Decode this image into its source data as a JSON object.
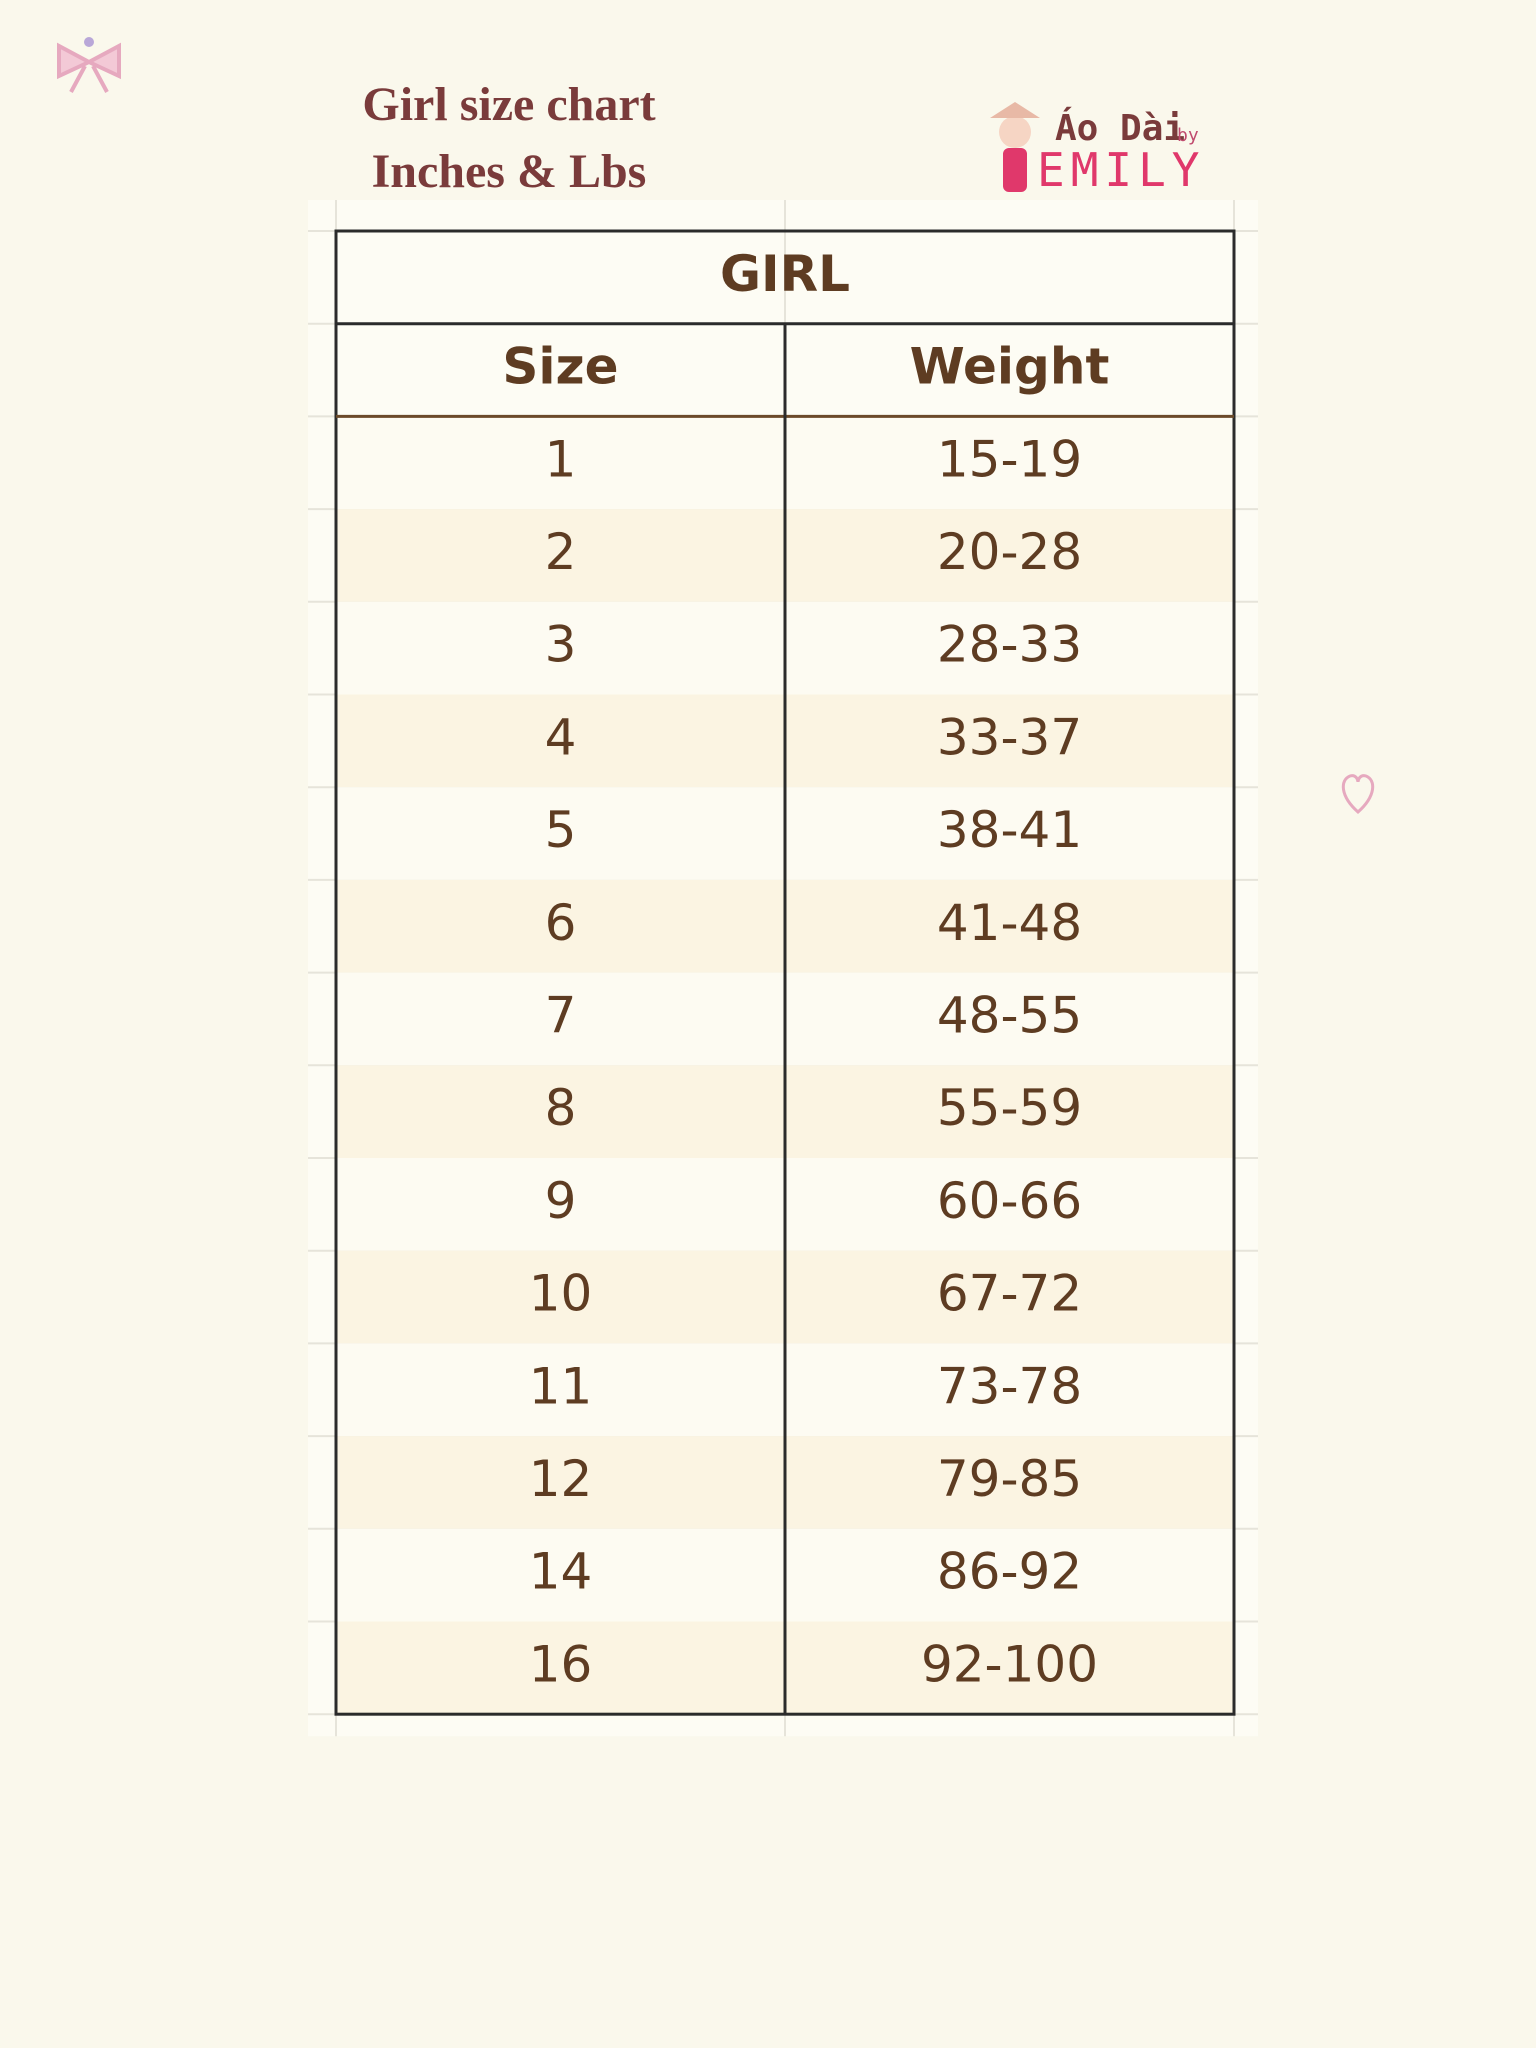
{
  "header": {
    "title": "Girl size chart",
    "subtitle": "Inches & Lbs"
  },
  "logo": {
    "brand": "Áo Dài",
    "by": "by",
    "name": "EMILY"
  },
  "table": {
    "caption": "GIRL",
    "columns": [
      "Size",
      "Weight"
    ],
    "rows": [
      [
        "1",
        "15-19"
      ],
      [
        "2",
        "20-28"
      ],
      [
        "3",
        "28-33"
      ],
      [
        "4",
        "33-37"
      ],
      [
        "5",
        "38-41"
      ],
      [
        "6",
        "41-48"
      ],
      [
        "7",
        "48-55"
      ],
      [
        "8",
        "55-59"
      ],
      [
        "9",
        "60-66"
      ],
      [
        "10",
        "67-72"
      ],
      [
        "11",
        "73-78"
      ],
      [
        "12",
        "79-85"
      ],
      [
        "14",
        "86-92"
      ],
      [
        "16",
        "92-100"
      ]
    ]
  }
}
